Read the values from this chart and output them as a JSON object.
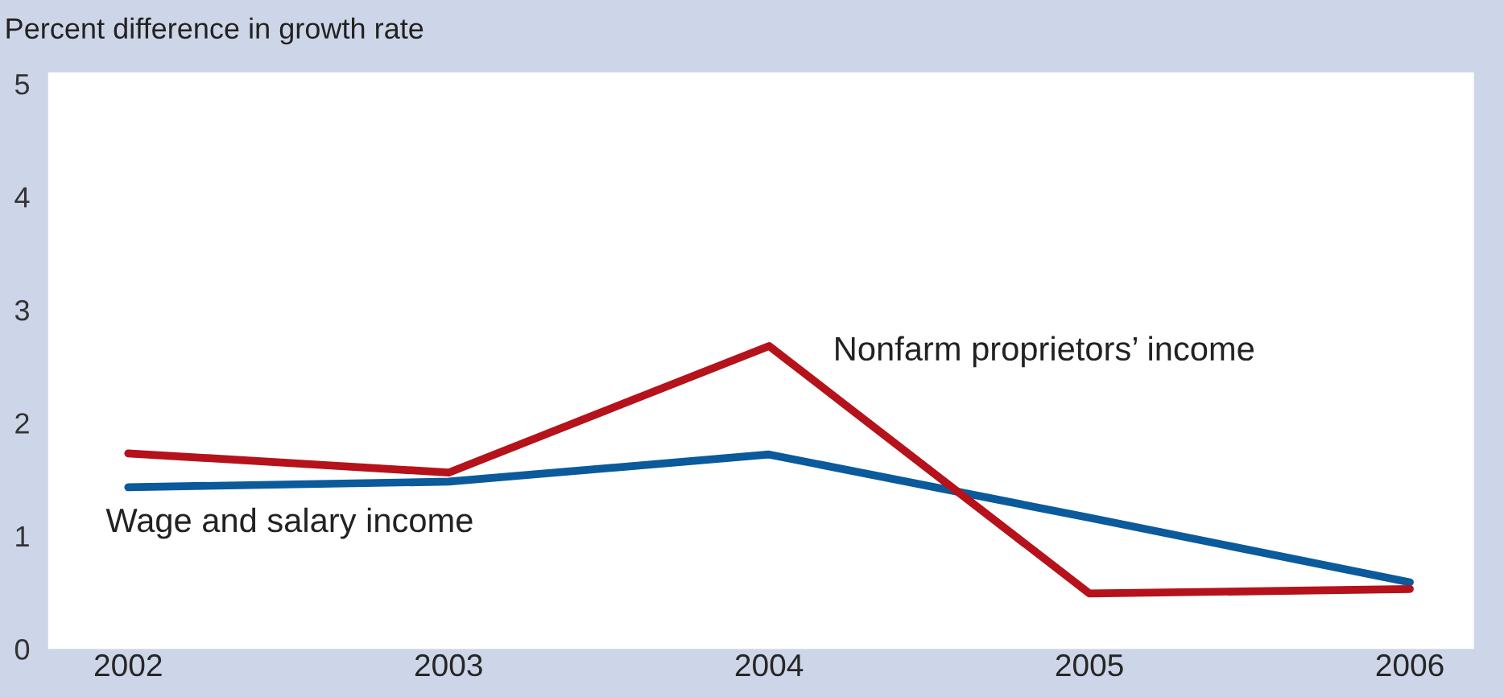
{
  "chart_data": {
    "type": "line",
    "ylabel": "Percent difference in growth rate",
    "categories": [
      "2002",
      "2003",
      "2004",
      "2005",
      "2006"
    ],
    "series": [
      {
        "name": "Wage and salary income",
        "color": "#0a5a9c",
        "values": [
          1.43,
          1.48,
          1.72,
          1.16,
          0.59
        ]
      },
      {
        "name": "Nonfarm proprietors’ income",
        "color": "#b5121b",
        "values": [
          1.73,
          1.56,
          2.68,
          0.49,
          0.53
        ]
      }
    ],
    "ylim": [
      0,
      5.1
    ],
    "yticks": [
      0,
      1,
      2,
      3,
      4,
      5
    ],
    "grid": false,
    "legend": false,
    "marker": "none",
    "line_style": "solid"
  }
}
